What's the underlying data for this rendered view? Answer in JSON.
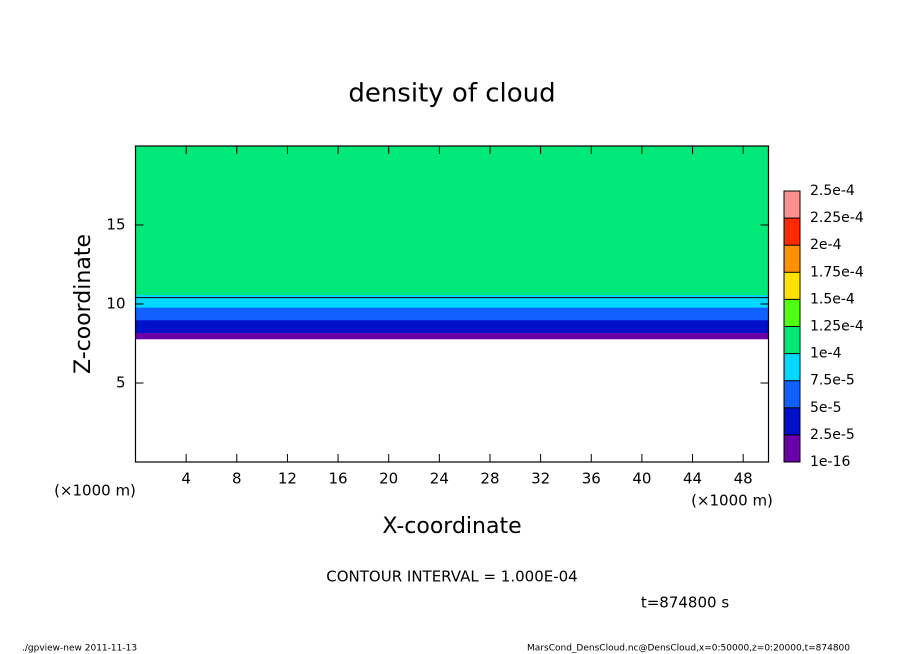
{
  "chart_data": {
    "type": "contour",
    "title": "density of cloud",
    "xlabel": "X-coordinate",
    "ylabel": "Z-coordinate",
    "x_unit": "(×1000 m)",
    "y_unit": "(×1000 m)",
    "xlim": [
      0,
      50
    ],
    "xticks": [
      4,
      8,
      12,
      16,
      20,
      24,
      28,
      32,
      36,
      40,
      44,
      48
    ],
    "ylim": [
      0,
      20
    ],
    "yticks": [
      5,
      10,
      15
    ],
    "levels": [
      1e-16,
      {
        "value": 2.5e-05,
        "label": "2.5e-5"
      },
      {
        "value": 5e-05,
        "label": "5e-5"
      },
      {
        "value": 7.5e-05,
        "label": "7.5e-5"
      },
      {
        "value": 0.0001,
        "label": "1e-4"
      },
      {
        "value": 0.000125,
        "label": "1.25e-4"
      },
      {
        "value": 0.00015,
        "label": "1.5e-4"
      },
      {
        "value": 0.000175,
        "label": "1.75e-4"
      },
      {
        "value": 0.0002,
        "label": "2e-4"
      },
      {
        "value": 0.000225,
        "label": "2.25e-4"
      },
      {
        "value": 0.00025,
        "label": "2.5e-4"
      }
    ],
    "colors": [
      "#6a00a8",
      "#0010c8",
      "#1060ff",
      "#00d8ff",
      "#00e878",
      "#50ff10",
      "#ffe000",
      "#ff9000",
      "#ff2a00",
      "#ff9090"
    ],
    "profile": {
      "z": [
        7.8,
        8.2,
        8.6,
        9.0,
        9.4,
        9.8,
        10.2,
        10.6,
        12,
        14,
        16,
        18,
        20
      ],
      "values": [
        2e-05,
        4e-05,
        4.5e-05,
        6e-05,
        7e-05,
        8.5e-05,
        9.5e-05,
        0.000105,
        0.000115,
        0.00012,
        0.00012,
        0.00012,
        0.00012
      ]
    },
    "contour": {
      "value": 0.0001,
      "z": 10.4
    },
    "annotations": [
      "CONTOUR INTERVAL = 1.000E-04",
      "t=874800 s"
    ],
    "footer_left": "./gpview-new  2011-11-13",
    "footer_right": "MarsCond_DensCloud.nc@DensCloud,x=0:50000,z=0:20000,t=874800"
  }
}
